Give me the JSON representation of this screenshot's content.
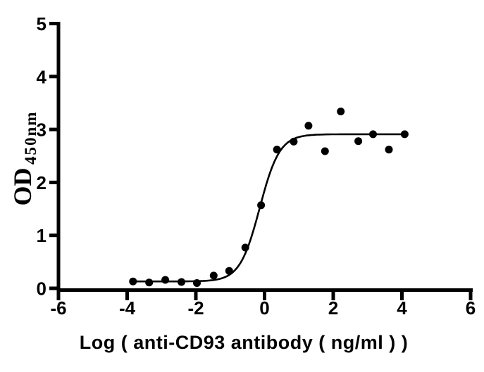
{
  "figure": {
    "background_color": "#ffffff",
    "axis_color": "#000000"
  },
  "chart_data": {
    "type": "scatter",
    "title": "",
    "xlabel": "Log ( anti-CD93 antibody ( ng/ml )  )",
    "ylabel_main": "OD",
    "ylabel_subscript": "450nm",
    "xlim": [
      -6,
      6
    ],
    "ylim": [
      0,
      5
    ],
    "x_ticks": [
      -6,
      -4,
      -2,
      0,
      2,
      4,
      6
    ],
    "y_ticks": [
      0,
      1,
      2,
      3,
      4,
      5
    ],
    "grid": false,
    "legend": false,
    "marker_color": "#000000",
    "marker_radius_px": 5.5,
    "curve_color": "#000000",
    "points": [
      [
        -3.83,
        0.13
      ],
      [
        -3.36,
        0.11
      ],
      [
        -2.89,
        0.16
      ],
      [
        -2.42,
        0.12
      ],
      [
        -1.97,
        0.1
      ],
      [
        -1.48,
        0.24
      ],
      [
        -1.03,
        0.33
      ],
      [
        -0.56,
        0.77
      ],
      [
        -0.1,
        1.57
      ],
      [
        0.36,
        2.62
      ],
      [
        0.85,
        2.77
      ],
      [
        1.28,
        3.07
      ],
      [
        1.76,
        2.59
      ],
      [
        2.22,
        3.34
      ],
      [
        2.73,
        2.78
      ],
      [
        3.16,
        2.91
      ],
      [
        3.62,
        2.62
      ],
      [
        4.08,
        2.91
      ]
    ],
    "fit_curve": {
      "model": "four-parameter-logistic",
      "bottom": 0.13,
      "top": 2.91,
      "log_ec50": -0.14,
      "hill_slope": 1.5,
      "x_range": [
        -3.83,
        4.08
      ]
    }
  }
}
